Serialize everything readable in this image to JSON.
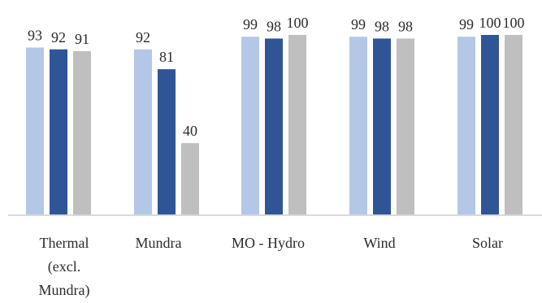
{
  "chart_data": {
    "type": "bar",
    "categories": [
      [
        "Thermal",
        "(excl.",
        "Mundra)"
      ],
      [
        "Mundra"
      ],
      [
        "MO - Hydro"
      ],
      [
        "Wind"
      ],
      [
        "Solar"
      ]
    ],
    "series": [
      {
        "values": [
          93,
          92,
          99,
          99,
          99
        ],
        "color": "#b4c7e7"
      },
      {
        "values": [
          92,
          81,
          98,
          98,
          100
        ],
        "color": "#2f5597"
      },
      {
        "values": [
          91,
          40,
          100,
          98,
          100
        ],
        "color": "#bfbfbf"
      }
    ],
    "ylim": [
      0,
      100
    ],
    "grid": false,
    "legend": "none",
    "data_labels": true
  }
}
